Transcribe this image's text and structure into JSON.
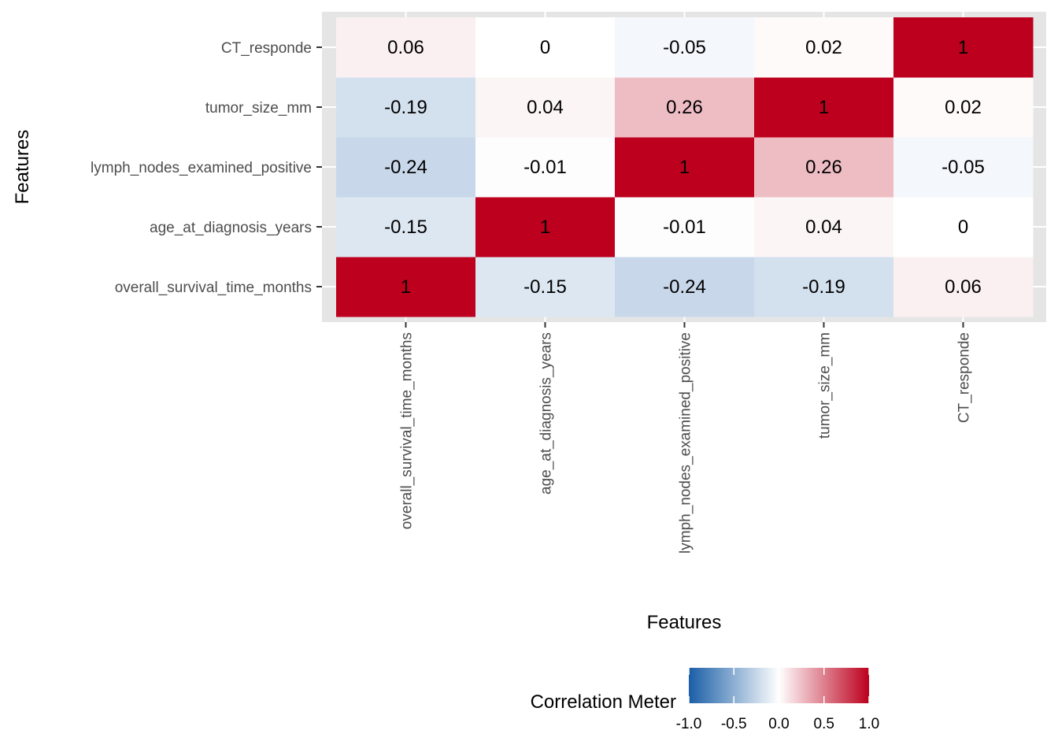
{
  "chart_data": {
    "type": "heatmap",
    "title": "",
    "xlabel": "Features",
    "ylabel": "Features",
    "x_categories": [
      "overall_survival_time_months",
      "age_at_diagnosis_years",
      "lymph_nodes_examined_positive",
      "tumor_size_mm",
      "CT_responde"
    ],
    "y_categories": [
      "overall_survival_time_months",
      "age_at_diagnosis_years",
      "lymph_nodes_examined_positive",
      "tumor_size_mm",
      "CT_responde"
    ],
    "y_order_note": "y categories listed bottom-to-top",
    "matrix": [
      [
        1,
        -0.15,
        -0.24,
        -0.19,
        0.06
      ],
      [
        -0.15,
        1,
        -0.01,
        0.04,
        0
      ],
      [
        -0.24,
        -0.01,
        1,
        0.26,
        -0.05
      ],
      [
        -0.19,
        0.04,
        0.26,
        1,
        0.02
      ],
      [
        0.06,
        0,
        -0.05,
        0.02,
        1
      ]
    ],
    "value_range": [
      -1,
      1
    ],
    "colors": {
      "low": "#1a5ea6",
      "mid": "#ffffff",
      "high": "#bc001d"
    },
    "legend": {
      "title": "Correlation Meter",
      "position": "bottom",
      "ticks": [
        -1.0,
        -0.5,
        0.0,
        0.5,
        1.0
      ],
      "tick_labels": [
        "-1.0",
        "-0.5",
        "0.0",
        "0.5",
        "1.0"
      ]
    },
    "grid": true,
    "panel_background": "#e5e5e5"
  }
}
